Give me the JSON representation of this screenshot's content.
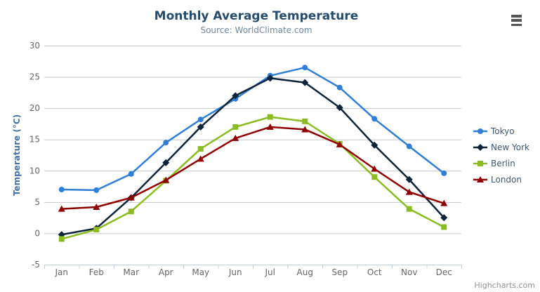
{
  "title": "Monthly Average Temperature",
  "subtitle": "Source: WorldClimate.com",
  "credits": "Highcharts.com",
  "chart_data": {
    "type": "line",
    "title": "Monthly Average Temperature",
    "subtitle": "Source: WorldClimate.com",
    "categories": [
      "Jan",
      "Feb",
      "Mar",
      "Apr",
      "May",
      "Jun",
      "Jul",
      "Aug",
      "Sep",
      "Oct",
      "Nov",
      "Dec"
    ],
    "series": [
      {
        "name": "Tokyo",
        "color": "#2f7ed8",
        "marker": "circle",
        "values": [
          7.0,
          6.9,
          9.5,
          14.5,
          18.2,
          21.5,
          25.2,
          26.5,
          23.3,
          18.3,
          13.9,
          9.6
        ]
      },
      {
        "name": "New York",
        "color": "#0d233a",
        "marker": "diamond",
        "values": [
          -0.2,
          0.8,
          5.7,
          11.3,
          17.0,
          22.0,
          24.8,
          24.1,
          20.1,
          14.1,
          8.6,
          2.5
        ]
      },
      {
        "name": "Berlin",
        "color": "#8bbc21",
        "marker": "square",
        "values": [
          -0.9,
          0.6,
          3.5,
          8.4,
          13.5,
          17.0,
          18.6,
          17.9,
          14.3,
          9.0,
          3.9,
          1.0
        ]
      },
      {
        "name": "London",
        "color": "#910000",
        "marker": "triangle",
        "values": [
          3.9,
          4.2,
          5.7,
          8.5,
          11.9,
          15.2,
          17.0,
          16.6,
          14.2,
          10.3,
          6.6,
          4.8
        ]
      }
    ],
    "xlabel": "",
    "ylabel": "Temperature (°C)",
    "ylim": [
      -5,
      30
    ],
    "ytick_interval": 5,
    "yticks": [
      -5,
      0,
      5,
      10,
      15,
      20,
      25,
      30
    ],
    "grid": true,
    "legend_position": "right"
  },
  "colors": {
    "title": "#274b6d",
    "subtitle": "#6d869f",
    "axis_title": "#4572a7",
    "axis_labels": "#666666",
    "gridline": "#c8c8c8",
    "axis_line": "#c0d0e0",
    "tick": "#c0d0e0",
    "legend_text": "#3e576f",
    "credits": "#909090",
    "background": "#ffffff"
  }
}
